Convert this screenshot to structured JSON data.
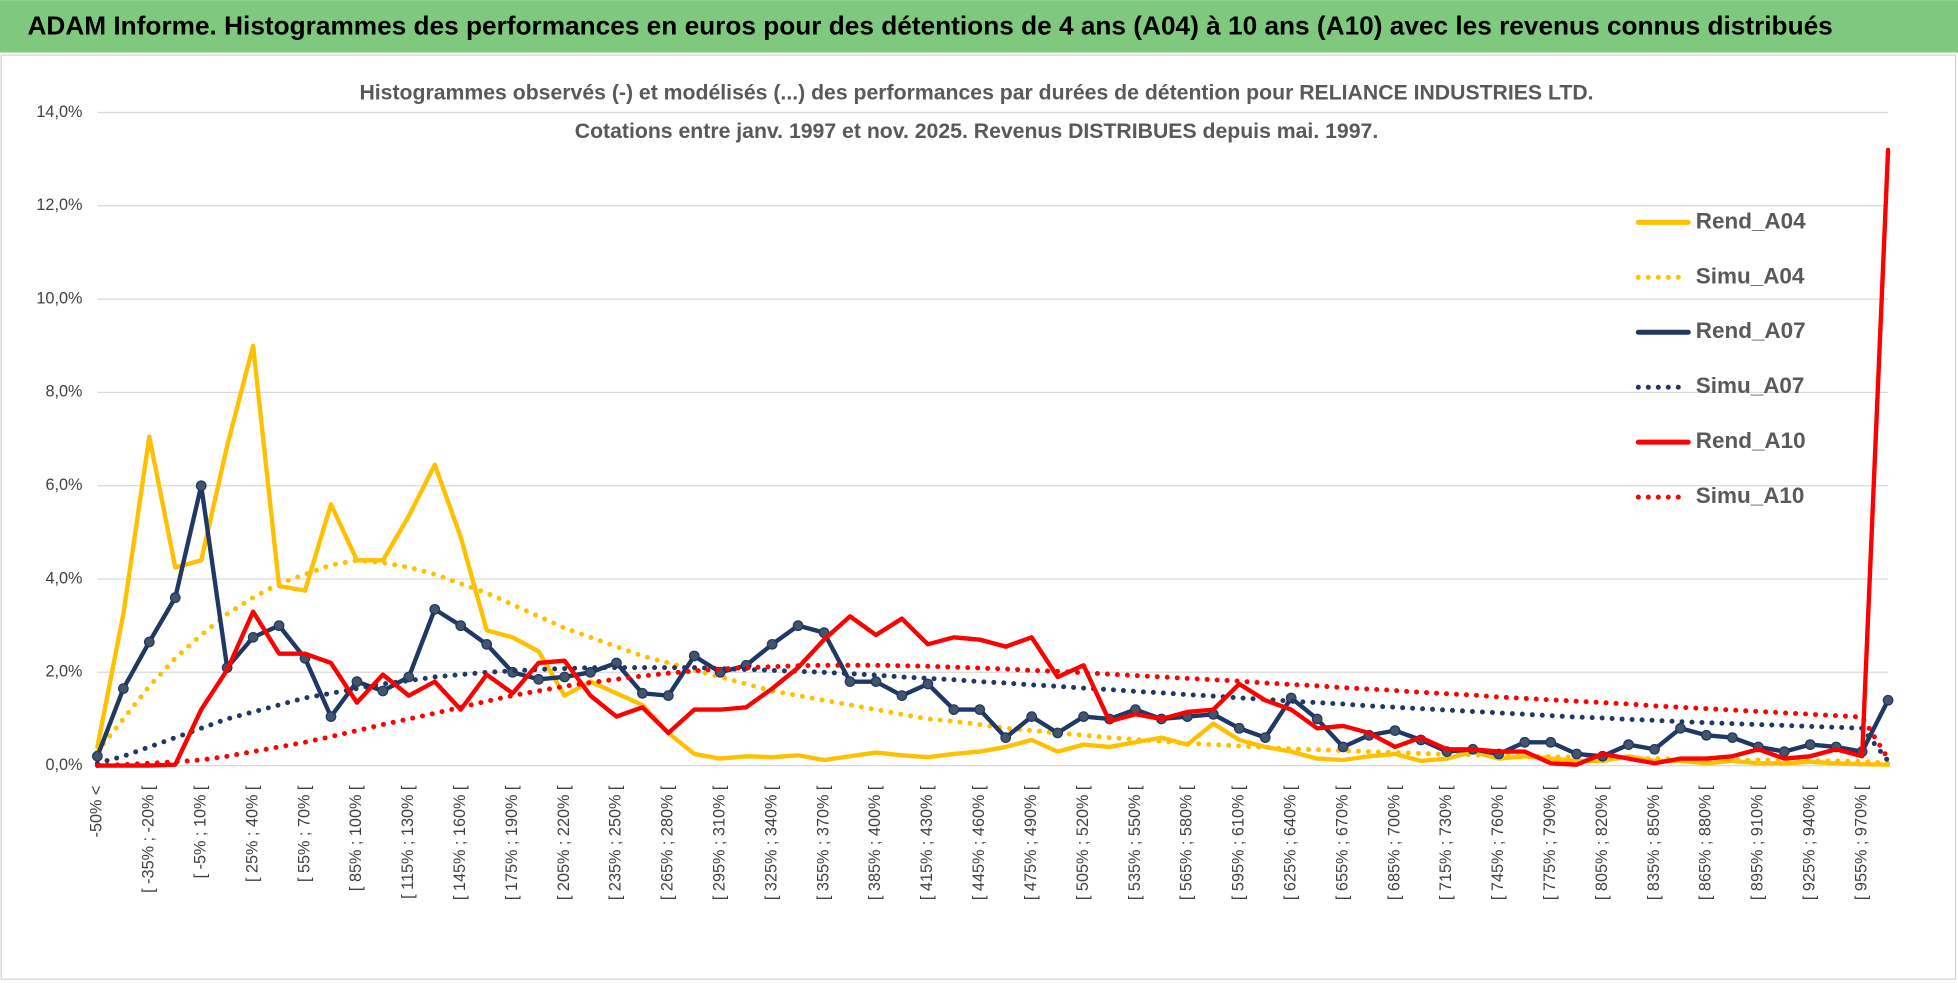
{
  "header": {
    "title": "ADAM Informe. Histogrammes des performances en euros pour des détentions de 4 ans (A04) à 10 ans (A10) avec les revenus connus distribués"
  },
  "chart_data": {
    "type": "line",
    "title": "Histogrammes observés (-) et modélisés (...) des performances par durées de détention pour RELIANCE INDUSTRIES LTD.",
    "subtitle": "Cotations entre janv. 1997 et nov. 2025. Revenus DISTRIBUES depuis mai. 1997.",
    "categories": [
      "-50% <",
      null,
      "[ -35% ; -20% [",
      null,
      "[ -5% ; 10% [",
      null,
      "[ 25% ; 40% [",
      null,
      "[ 55% ; 70% [",
      null,
      "[ 85% ; 100% [",
      null,
      "[ 115% ; 130% [",
      null,
      "[ 145% ; 160% [",
      null,
      "[ 175% ; 190% [",
      null,
      "[ 205% ; 220% [",
      null,
      "[ 235% ; 250% [",
      null,
      "[ 265% ; 280% [",
      null,
      "[ 295% ; 310% [",
      null,
      "[ 325% ; 340% [",
      null,
      "[ 355% ; 370% [",
      null,
      "[ 385% ; 400% [",
      null,
      "[ 415% ; 430% [",
      null,
      "[ 445% ; 460% [",
      null,
      "[ 475% ; 490% [",
      null,
      "[ 505% ; 520% [",
      null,
      "[ 535% ; 550% [",
      null,
      "[ 565% ; 580% [",
      null,
      "[ 595% ; 610% [",
      null,
      "[ 625% ; 640% [",
      null,
      "[ 655% ; 670% [",
      null,
      "[ 685% ; 700% [",
      null,
      "[ 715% ; 730% [",
      null,
      "[ 745% ; 760% [",
      null,
      "[ 775% ; 790% [",
      null,
      "[ 805% ; 820% [",
      null,
      "[ 835% ; 850% [",
      null,
      "[ 865% ; 880% [",
      null,
      "[ 895% ; 910% [",
      null,
      "[ 925% ; 940% [",
      null,
      "[ 955% ; 970% [",
      null
    ],
    "series": [
      {
        "name": "Rend_A04",
        "color": "#ffc000",
        "style": "solid",
        "markers": false,
        "values": [
          0.4,
          3.25,
          7.05,
          4.25,
          4.4,
          6.85,
          9.0,
          3.85,
          3.75,
          5.6,
          4.4,
          4.4,
          5.35,
          6.45,
          4.9,
          2.9,
          2.75,
          2.45,
          1.5,
          1.8,
          1.55,
          1.3,
          0.7,
          0.25,
          0.15,
          0.2,
          0.18,
          0.22,
          0.12,
          0.2,
          0.28,
          0.22,
          0.18,
          0.25,
          0.3,
          0.4,
          0.55,
          0.3,
          0.45,
          0.4,
          0.5,
          0.6,
          0.45,
          0.9,
          0.55,
          0.4,
          0.3,
          0.15,
          0.12,
          0.2,
          0.25,
          0.1,
          0.15,
          0.3,
          0.15,
          0.2,
          0.15,
          0.1,
          0.1,
          0.2,
          0.1,
          0.1,
          0.05,
          0.1,
          0.05,
          0.05,
          0.08,
          0.05,
          0.03,
          0.02
        ]
      },
      {
        "name": "Simu_A04",
        "color": "#ffc000",
        "style": "dotted",
        "markers": false,
        "values": [
          0.3,
          1.0,
          1.7,
          2.3,
          2.8,
          3.25,
          3.6,
          3.9,
          4.1,
          4.3,
          4.4,
          4.35,
          4.25,
          4.1,
          3.9,
          3.7,
          3.45,
          3.2,
          2.95,
          2.75,
          2.55,
          2.35,
          2.2,
          2.05,
          1.9,
          1.75,
          1.6,
          1.5,
          1.4,
          1.3,
          1.2,
          1.1,
          1.0,
          0.95,
          0.88,
          0.8,
          0.75,
          0.7,
          0.65,
          0.6,
          0.56,
          0.52,
          0.48,
          0.45,
          0.42,
          0.39,
          0.36,
          0.34,
          0.32,
          0.3,
          0.28,
          0.26,
          0.24,
          0.23,
          0.22,
          0.2,
          0.19,
          0.18,
          0.17,
          0.16,
          0.15,
          0.14,
          0.13,
          0.12,
          0.12,
          0.11,
          0.1,
          0.1,
          0.09,
          0.05
        ]
      },
      {
        "name": "Rend_A07",
        "color": "#1f3864",
        "style": "solid",
        "markers": true,
        "values": [
          0.2,
          1.65,
          2.65,
          3.6,
          6.0,
          2.1,
          2.75,
          3.0,
          2.3,
          1.05,
          1.8,
          1.6,
          1.9,
          3.35,
          3.0,
          2.6,
          2.0,
          1.85,
          1.9,
          2.0,
          2.2,
          1.55,
          1.5,
          2.35,
          2.0,
          2.15,
          2.6,
          3.0,
          2.85,
          1.8,
          1.8,
          1.5,
          1.75,
          1.2,
          1.2,
          0.6,
          1.05,
          0.7,
          1.05,
          1.0,
          1.2,
          1.0,
          1.05,
          1.1,
          0.8,
          0.6,
          1.45,
          1.0,
          0.4,
          0.65,
          0.75,
          0.55,
          0.3,
          0.35,
          0.25,
          0.5,
          0.5,
          0.25,
          0.2,
          0.45,
          0.35,
          0.8,
          0.65,
          0.6,
          0.4,
          0.3,
          0.45,
          0.4,
          0.3,
          1.4
        ]
      },
      {
        "name": "Simu_A07",
        "color": "#1f3864",
        "style": "dotted",
        "markers": false,
        "values": [
          0.05,
          0.2,
          0.4,
          0.6,
          0.8,
          1.0,
          1.15,
          1.3,
          1.45,
          1.55,
          1.65,
          1.75,
          1.82,
          1.9,
          1.95,
          2.0,
          2.03,
          2.06,
          2.08,
          2.1,
          2.1,
          2.1,
          2.1,
          2.1,
          2.08,
          2.06,
          2.04,
          2.02,
          2.0,
          1.97,
          1.94,
          1.9,
          1.87,
          1.84,
          1.8,
          1.77,
          1.73,
          1.7,
          1.66,
          1.63,
          1.59,
          1.56,
          1.52,
          1.49,
          1.45,
          1.42,
          1.38,
          1.35,
          1.32,
          1.28,
          1.25,
          1.22,
          1.19,
          1.16,
          1.13,
          1.1,
          1.07,
          1.04,
          1.02,
          0.99,
          0.97,
          0.94,
          0.92,
          0.9,
          0.88,
          0.86,
          0.84,
          0.82,
          0.8,
          0.1
        ]
      },
      {
        "name": "Rend_A10",
        "color": "#ff0000",
        "style": "solid",
        "markers": false,
        "values": [
          0,
          0,
          0,
          0.02,
          1.2,
          2.05,
          3.3,
          2.4,
          2.4,
          2.2,
          1.35,
          1.95,
          1.5,
          1.8,
          1.2,
          1.95,
          1.55,
          2.2,
          2.25,
          1.5,
          1.05,
          1.25,
          0.7,
          1.2,
          1.2,
          1.25,
          1.65,
          2.1,
          2.7,
          3.2,
          2.8,
          3.15,
          2.6,
          2.75,
          2.7,
          2.55,
          2.75,
          1.9,
          2.15,
          0.95,
          1.1,
          1.0,
          1.15,
          1.2,
          1.75,
          1.4,
          1.2,
          0.8,
          0.85,
          0.7,
          0.4,
          0.6,
          0.35,
          0.35,
          0.3,
          0.3,
          0.05,
          0.02,
          0.25,
          0.15,
          0.05,
          0.15,
          0.15,
          0.2,
          0.35,
          0.15,
          0.2,
          0.35,
          0.2,
          13.2
        ]
      },
      {
        "name": "Simu_A10",
        "color": "#ff0000",
        "style": "dotted",
        "markers": false,
        "values": [
          0,
          0.02,
          0.05,
          0.08,
          0.12,
          0.2,
          0.3,
          0.4,
          0.5,
          0.62,
          0.75,
          0.88,
          1.0,
          1.12,
          1.25,
          1.38,
          1.5,
          1.6,
          1.7,
          1.78,
          1.85,
          1.92,
          1.98,
          2.03,
          2.07,
          2.1,
          2.12,
          2.14,
          2.15,
          2.15,
          2.15,
          2.14,
          2.13,
          2.11,
          2.09,
          2.07,
          2.04,
          2.02,
          1.99,
          1.96,
          1.93,
          1.9,
          1.87,
          1.84,
          1.81,
          1.77,
          1.74,
          1.71,
          1.67,
          1.64,
          1.61,
          1.57,
          1.54,
          1.51,
          1.47,
          1.44,
          1.41,
          1.38,
          1.35,
          1.32,
          1.28,
          1.25,
          1.22,
          1.19,
          1.16,
          1.13,
          1.1,
          1.07,
          1.04,
          0.15
        ]
      }
    ],
    "ylim": [
      0,
      14
    ],
    "yticks": [
      {
        "value": 0,
        "label": "0,0%"
      },
      {
        "value": 2,
        "label": "2,0%"
      },
      {
        "value": 4,
        "label": "4,0%"
      },
      {
        "value": 6,
        "label": "6,0%"
      },
      {
        "value": 8,
        "label": "8,0%"
      },
      {
        "value": 10,
        "label": "10,0%"
      },
      {
        "value": 12,
        "label": "12,0%"
      },
      {
        "value": 14,
        "label": "14,0%"
      }
    ],
    "grid": true,
    "legend": "right"
  }
}
